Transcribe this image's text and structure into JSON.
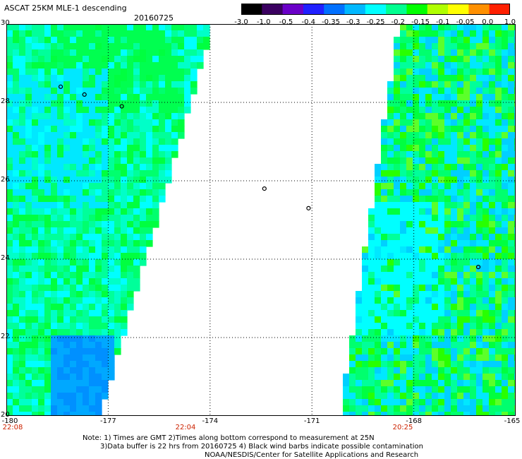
{
  "header": {
    "title": "ASCAT 25KM MLE-1 descending",
    "date": "20160725"
  },
  "colorbar": {
    "labels": [
      "-3.0",
      "-1.0",
      "-0.5",
      "-0.4",
      "-0.35",
      "-0.3",
      "-0.25",
      "-0.2",
      "-0.15",
      "-0.1",
      "-0.05",
      "0.0",
      "1.0"
    ],
    "colors": [
      "#000000",
      "#3a0060",
      "#6a00c8",
      "#2020ff",
      "#0070ff",
      "#00b8ff",
      "#00ffff",
      "#00ff90",
      "#00ff00",
      "#b0ff00",
      "#ffff00",
      "#ff9000",
      "#ff2000"
    ]
  },
  "axes": {
    "lat_labels": [
      "30",
      "28",
      "26",
      "24",
      "22",
      "20"
    ],
    "lon_labels": [
      "-180",
      "-177",
      "-174",
      "-171",
      "-168",
      "-165"
    ],
    "time_labels": [
      "22:08",
      "22:04",
      "20:25"
    ]
  },
  "map": {
    "lat_range": [
      20,
      30
    ],
    "lon_range": [
      -180,
      -165
    ],
    "swath_colors": [
      "#00ffff",
      "#00ffc8",
      "#00ff9a",
      "#00ff6e",
      "#00ff40",
      "#00e8ff",
      "#00d0ff",
      "#5cff2a",
      "#28ff00"
    ],
    "land_color": "#000000",
    "grid": "dotted"
  },
  "notes": {
    "line1": "Note: 1) Times are GMT 2)Times along bottom correspond to measurement at 25N",
    "line2": "3)Data buffer is 22 hrs from 20160725 4) Black wind barbs indicate possible contamination",
    "line3": "NOAA/NESDIS/Center for Satellite Applications and Research"
  }
}
